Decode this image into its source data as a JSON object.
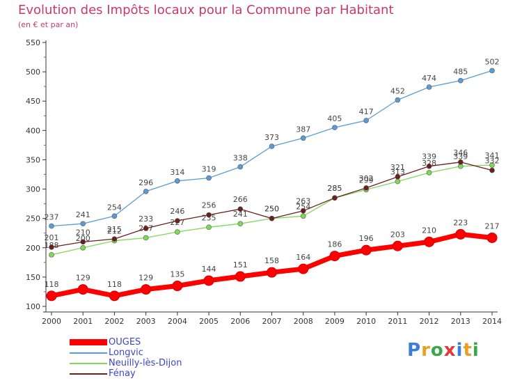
{
  "header": {
    "title": "Evolution des Impôts locaux pour la Commune par Habitant",
    "subtitle": "(en € et par an)"
  },
  "colors": {
    "title": "#c8396b",
    "ouges": "#ff0000",
    "longvic": "#5b9bd5",
    "neuilly": "#7ed957",
    "fenay": "#6b1f1f",
    "legend_text": "#3a46c8"
  },
  "logo": {
    "text": "Proxiti",
    "letter_colors": [
      "#3a7fd5",
      "#e8a020",
      "#3aa84a",
      "#e23a3a",
      "#3a7fd5",
      "#e8a020",
      "#3aa84a"
    ]
  },
  "chart_data": {
    "type": "line",
    "title": "Evolution des Impôts locaux pour la Commune par Habitant",
    "subtitle": "(en € et par an)",
    "xlabel": "",
    "ylabel": "",
    "x": [
      2000,
      2001,
      2002,
      2003,
      2004,
      2005,
      2006,
      2007,
      2008,
      2009,
      2010,
      2011,
      2012,
      2013,
      2014
    ],
    "ylim": [
      100,
      550
    ],
    "yticks": [
      100,
      150,
      200,
      250,
      300,
      350,
      400,
      450,
      500,
      550
    ],
    "grid": false,
    "legend_position": "bottom-left",
    "series": [
      {
        "name": "OUGES",
        "key": "ouges",
        "color": "#ff0000",
        "emphasis": true,
        "values": [
          118,
          129,
          118,
          129,
          135,
          144,
          151,
          158,
          164,
          186,
          196,
          203,
          210,
          223,
          217
        ]
      },
      {
        "name": "Longvic",
        "key": "longvic",
        "color": "#5b9bd5",
        "emphasis": false,
        "values": [
          237,
          241,
          254,
          296,
          314,
          319,
          338,
          373,
          387,
          405,
          417,
          452,
          474,
          485,
          502
        ]
      },
      {
        "name": "Neuilly-lès-Dijon",
        "key": "neuilly",
        "color": "#7ed957",
        "emphasis": false,
        "values": [
          188,
          200,
          212,
          217,
          227,
          235,
          241,
          250,
          254,
          285,
          299,
          313,
          328,
          339,
          341
        ]
      },
      {
        "name": "Fénay",
        "key": "fenay",
        "color": "#6b1f1f",
        "emphasis": false,
        "values": [
          201,
          210,
          215,
          233,
          246,
          256,
          266,
          250,
          263,
          285,
          302,
          321,
          339,
          346,
          332
        ]
      }
    ]
  }
}
